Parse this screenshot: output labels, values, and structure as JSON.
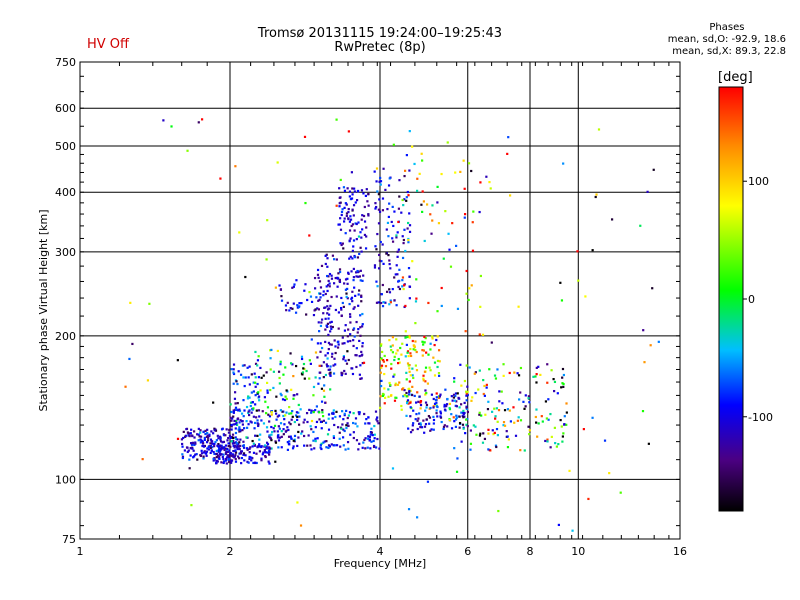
{
  "header": {
    "title": "Tromsø 20131115 19:24:00–19:25:43",
    "subtitle": "RwPretec (8p)",
    "status": "HV Off"
  },
  "stats": {
    "title": "Phases",
    "line_o": "mean, sd,O: -92.9, 18.6",
    "line_x": "mean, sd,X:  89.3, 22.8"
  },
  "colorbar": {
    "label": "[deg]",
    "ticks": [
      100,
      0,
      -100
    ],
    "range": [
      -180,
      180
    ]
  },
  "colors": {
    "status": "#d00000",
    "grid": "#000000"
  },
  "chart_data": {
    "type": "scatter",
    "title": "Tromsø 20131115 19:24:00–19:25:43",
    "subtitle": "RwPretec (8p)",
    "xlabel": "Frequency [MHz]",
    "ylabel": "Stationary phase Virtual Height [km]",
    "xscale": "log",
    "yscale": "log",
    "xlim": [
      1,
      16
    ],
    "ylim": [
      75,
      750
    ],
    "xticks": [
      1,
      2,
      4,
      6,
      8,
      10,
      16
    ],
    "yticks": [
      75,
      100,
      200,
      300,
      400,
      500,
      600,
      750
    ],
    "grid": true,
    "color_variable": "phase [deg]",
    "color_range": [
      -180,
      180
    ],
    "clusters": [
      {
        "freq_range": [
          1.6,
          2.1
        ],
        "height_range": [
          110,
          128
        ],
        "phase_mean": -110,
        "phase_sd": 25,
        "count": 200
      },
      {
        "freq_range": [
          1.85,
          2.4
        ],
        "height_range": [
          108,
          118
        ],
        "phase_mean": -110,
        "phase_sd": 20,
        "count": 120
      },
      {
        "freq_range": [
          2.0,
          4.0
        ],
        "height_range": [
          115,
          140
        ],
        "phase_mean": -95,
        "phase_sd": 35,
        "count": 300
      },
      {
        "freq_range": [
          2.0,
          2.3
        ],
        "height_range": [
          130,
          175
        ],
        "phase_mean": -100,
        "phase_sd": 30,
        "count": 70
      },
      {
        "freq_range": [
          2.2,
          3.2
        ],
        "height_range": [
          135,
          190
        ],
        "phase_mean": -50,
        "phase_sd": 90,
        "count": 110
      },
      {
        "freq_range": [
          2.5,
          3.2
        ],
        "height_range": [
          220,
          265
        ],
        "phase_mean": -105,
        "phase_sd": 30,
        "count": 45
      },
      {
        "freq_range": [
          3.0,
          3.7
        ],
        "height_range": [
          160,
          300
        ],
        "phase_mean": -110,
        "phase_sd": 25,
        "count": 220
      },
      {
        "freq_range": [
          3.3,
          3.8
        ],
        "height_range": [
          300,
          410
        ],
        "phase_mean": -110,
        "phase_sd": 20,
        "count": 90
      },
      {
        "freq_range": [
          3.9,
          4.6
        ],
        "height_range": [
          230,
          450
        ],
        "phase_mean": -105,
        "phase_sd": 30,
        "count": 120
      },
      {
        "freq_range": [
          4.0,
          5.3
        ],
        "height_range": [
          140,
          200
        ],
        "phase_mean": 60,
        "phase_sd": 80,
        "count": 160
      },
      {
        "freq_range": [
          4.5,
          6.0
        ],
        "height_range": [
          125,
          155
        ],
        "phase_mean": -95,
        "phase_sd": 30,
        "count": 130
      },
      {
        "freq_range": [
          5.5,
          9.5
        ],
        "height_range": [
          115,
          175
        ],
        "phase_mean": -30,
        "phase_sd": 110,
        "count": 170
      },
      {
        "freq_range": [
          4.3,
          6.5
        ],
        "height_range": [
          200,
          520
        ],
        "phase_mean": 70,
        "phase_sd": 100,
        "count": 70
      },
      {
        "freq_range": [
          1.2,
          15.0
        ],
        "height_range": [
          78,
          600
        ],
        "phase_mean": 20,
        "phase_sd": 130,
        "count": 110
      }
    ]
  }
}
